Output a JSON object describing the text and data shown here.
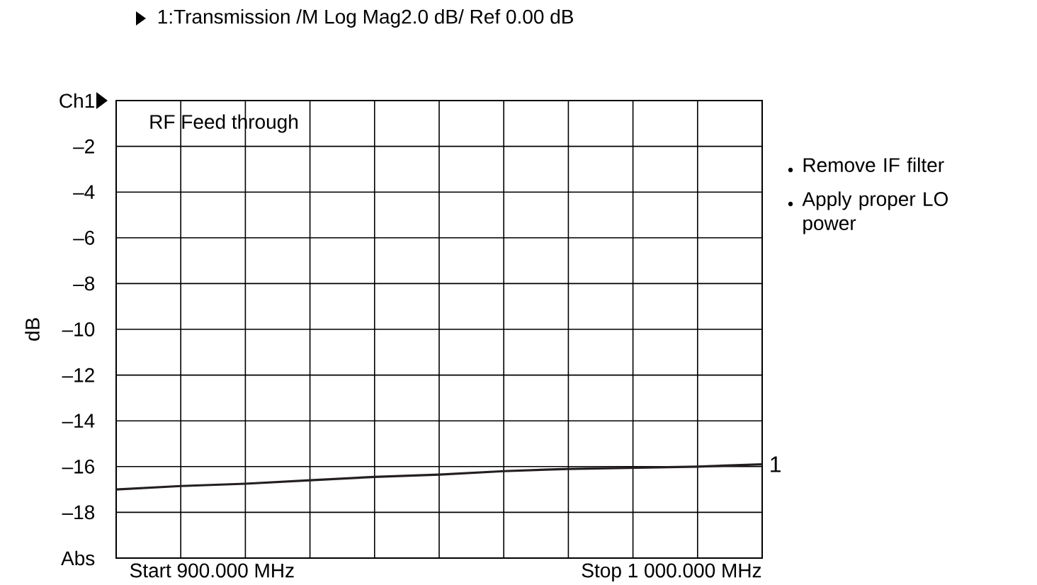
{
  "chart_data": {
    "type": "line",
    "title": "1:Transmission  /M Log Mag2.0 dB/  Ref  0.00 dB",
    "ylabel": "dB",
    "categories": [
      null,
      null,
      null,
      null,
      null,
      null,
      null,
      null,
      null,
      null,
      null
    ],
    "series": [
      {
        "name": "1",
        "color": "#231f20",
        "values": [
          -17.0,
          -16.85,
          -16.75,
          -16.6,
          -16.45,
          -16.35,
          -16.2,
          -16.1,
          -16.05,
          -16.0,
          -15.9
        ]
      }
    ],
    "ylim": [
      -20,
      0
    ],
    "yticks": [
      {
        "value": 0,
        "label": "Ch1"
      },
      {
        "value": -2,
        "label": "–2"
      },
      {
        "value": -4,
        "label": "–4"
      },
      {
        "value": -6,
        "label": "–6"
      },
      {
        "value": -8,
        "label": "–8"
      },
      {
        "value": -10,
        "label": "–10"
      },
      {
        "value": -12,
        "label": "–12"
      },
      {
        "value": -14,
        "label": "–14"
      },
      {
        "value": -16,
        "label": "–16"
      },
      {
        "value": -18,
        "label": "–18"
      },
      {
        "value": -20,
        "label": "Abs"
      }
    ],
    "tick_labels": "y",
    "grid": true,
    "legend": false,
    "annotations": [
      "RF Feed through",
      "Start 900.000 MHz",
      "Stop 1 000.000 MHz",
      "Remove IF filter",
      "Apply proper LO power"
    ]
  }
}
